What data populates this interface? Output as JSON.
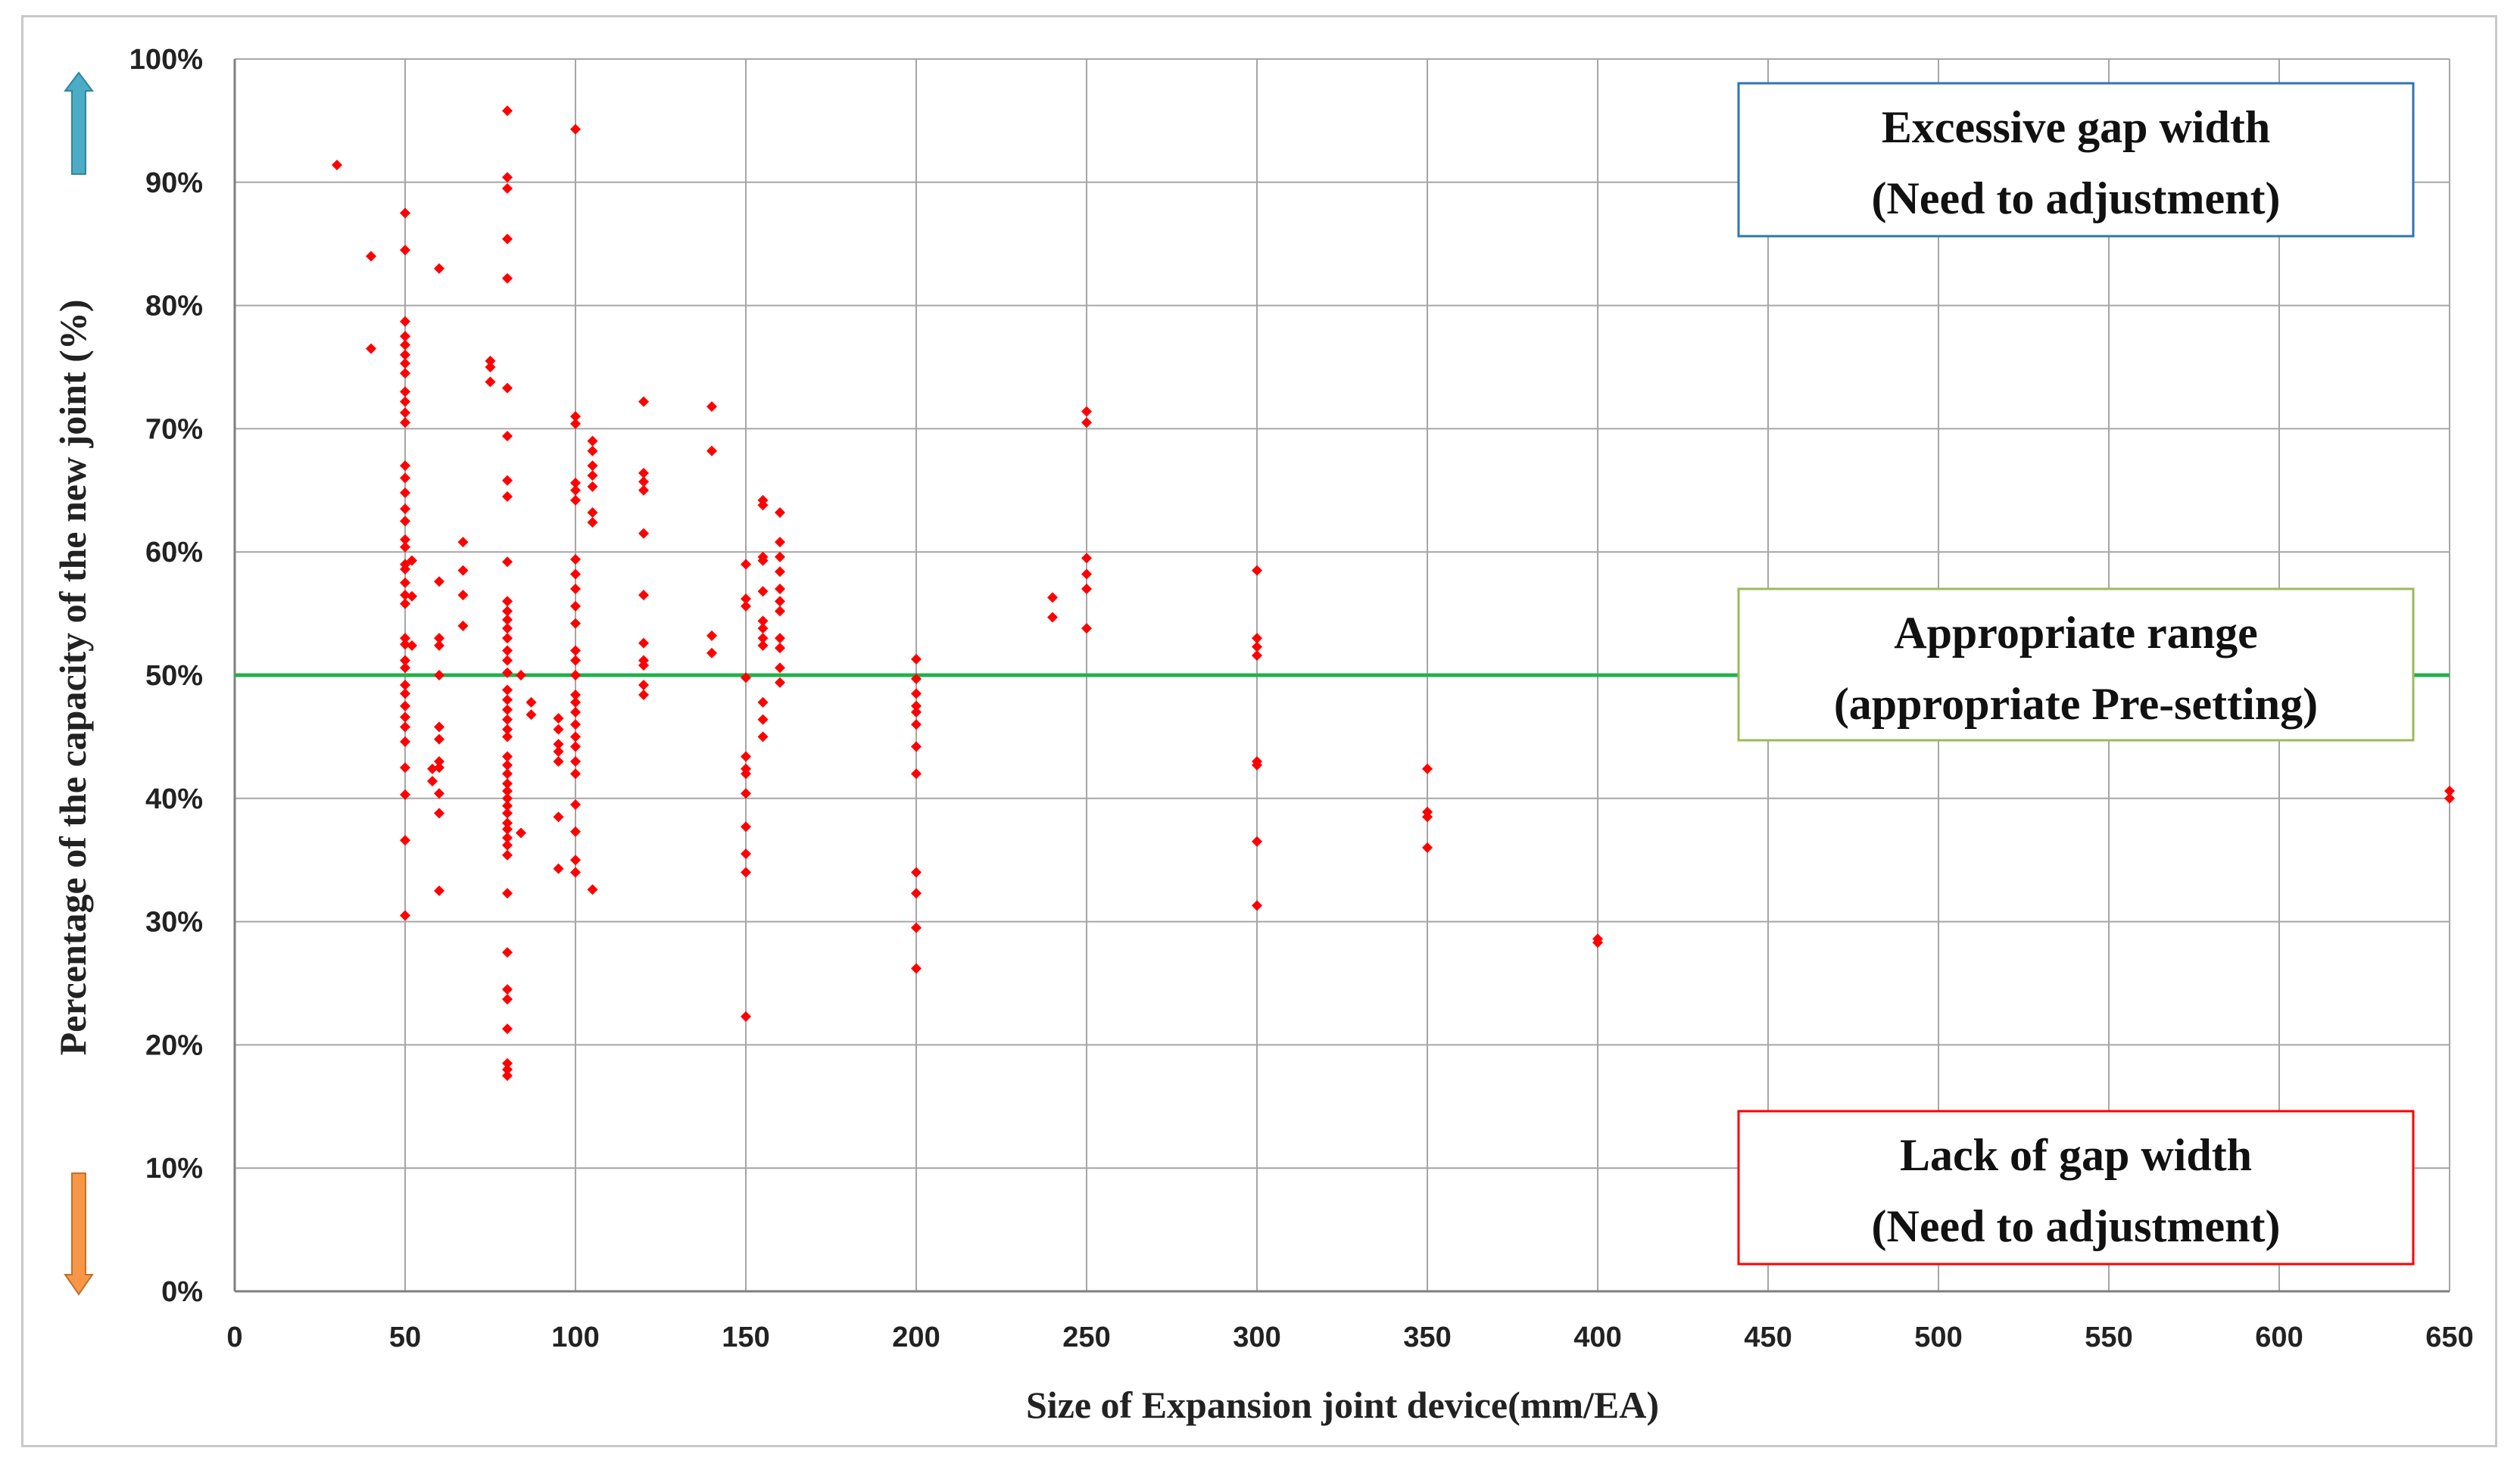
{
  "chart_data": {
    "type": "scatter",
    "title": "",
    "xlabel": "Size of Expansion joint device(mm/EA)",
    "ylabel": "Percentage of the capacity of the new joint (%)",
    "xlim": [
      0,
      650
    ],
    "ylim": [
      0,
      100
    ],
    "x_ticks": [
      0,
      50,
      100,
      150,
      200,
      250,
      300,
      350,
      400,
      450,
      500,
      550,
      600,
      650
    ],
    "y_ticks": [
      0,
      10,
      20,
      30,
      40,
      50,
      60,
      70,
      80,
      90,
      100
    ],
    "y_tick_labels": [
      "0%",
      "10%",
      "20%",
      "30%",
      "40%",
      "50%",
      "60%",
      "70%",
      "80%",
      "90%",
      "100%"
    ],
    "grid": true,
    "point_color": "#ff0000",
    "reference_line": {
      "y": 50,
      "color": "#22b14c"
    },
    "annotations": [
      {
        "lines": [
          "Excessive gap width",
          "(Need to adjustment)"
        ],
        "border_color": "#2e75b6"
      },
      {
        "lines": [
          "Appropriate range",
          "(appropriate Pre-setting)"
        ],
        "border_color": "#9bbb59"
      },
      {
        "lines": [
          "Lack of gap width",
          "(Need to adjustment)"
        ],
        "border_color": "#ff0000"
      }
    ],
    "arrows": [
      {
        "direction": "up",
        "color": "#4bacc6"
      },
      {
        "direction": "down",
        "color": "#f79646"
      }
    ],
    "points": [
      [
        30,
        91.4
      ],
      [
        40,
        84
      ],
      [
        40,
        76.5
      ],
      [
        50,
        87.5
      ],
      [
        50,
        84.5
      ],
      [
        50,
        78.7
      ],
      [
        50,
        77.5
      ],
      [
        50,
        76.8
      ],
      [
        50,
        76
      ],
      [
        50,
        75.3
      ],
      [
        50,
        74.5
      ],
      [
        50,
        73
      ],
      [
        50,
        72.2
      ],
      [
        50,
        71.3
      ],
      [
        50,
        70.5
      ],
      [
        50,
        67
      ],
      [
        50,
        66
      ],
      [
        50,
        64.8
      ],
      [
        50,
        63.5
      ],
      [
        50,
        62.5
      ],
      [
        50,
        61
      ],
      [
        50,
        60.4
      ],
      [
        50,
        59
      ],
      [
        50,
        58.6
      ],
      [
        50,
        57.5
      ],
      [
        50,
        56.5
      ],
      [
        50,
        55.8
      ],
      [
        50,
        53
      ],
      [
        50,
        52.5
      ],
      [
        50,
        51.2
      ],
      [
        50,
        50.6
      ],
      [
        50,
        49.2
      ],
      [
        50,
        48.5
      ],
      [
        50,
        47.5
      ],
      [
        50,
        46.6
      ],
      [
        50,
        45.8
      ],
      [
        50,
        44.6
      ],
      [
        50,
        42.5
      ],
      [
        50,
        40.3
      ],
      [
        50,
        36.6
      ],
      [
        50,
        30.5
      ],
      [
        52,
        59.3
      ],
      [
        52,
        56.4
      ],
      [
        52,
        52.4
      ],
      [
        58,
        42.4
      ],
      [
        58,
        41.4
      ],
      [
        60,
        83
      ],
      [
        60,
        57.6
      ],
      [
        60,
        53
      ],
      [
        60,
        52.4
      ],
      [
        60,
        50
      ],
      [
        60,
        45.8
      ],
      [
        60,
        44.8
      ],
      [
        60,
        43
      ],
      [
        60,
        42.5
      ],
      [
        60,
        40.4
      ],
      [
        60,
        38.8
      ],
      [
        60,
        32.5
      ],
      [
        67,
        60.8
      ],
      [
        67,
        58.5
      ],
      [
        67,
        56.5
      ],
      [
        67,
        54
      ],
      [
        75,
        75.5
      ],
      [
        75,
        75
      ],
      [
        75,
        73.8
      ],
      [
        80,
        95.8
      ],
      [
        80,
        90.4
      ],
      [
        80,
        89.5
      ],
      [
        80,
        85.4
      ],
      [
        80,
        82.2
      ],
      [
        80,
        73.3
      ],
      [
        80,
        69.4
      ],
      [
        80,
        65.8
      ],
      [
        80,
        64.5
      ],
      [
        80,
        59.2
      ],
      [
        80,
        56
      ],
      [
        80,
        55.2
      ],
      [
        80,
        54.5
      ],
      [
        80,
        53.8
      ],
      [
        80,
        53
      ],
      [
        80,
        52
      ],
      [
        80,
        51.2
      ],
      [
        80,
        50.2
      ],
      [
        80,
        48.8
      ],
      [
        80,
        48
      ],
      [
        80,
        47.2
      ],
      [
        80,
        46.4
      ],
      [
        80,
        45.6
      ],
      [
        80,
        45
      ],
      [
        80,
        43.4
      ],
      [
        80,
        42.7
      ],
      [
        80,
        42
      ],
      [
        80,
        41.2
      ],
      [
        80,
        40.6
      ],
      [
        80,
        40
      ],
      [
        80,
        39.4
      ],
      [
        80,
        38.8
      ],
      [
        80,
        38
      ],
      [
        80,
        37.5
      ],
      [
        80,
        36.8
      ],
      [
        80,
        36.2
      ],
      [
        80,
        35.4
      ],
      [
        80,
        32.3
      ],
      [
        80,
        27.5
      ],
      [
        80,
        24.5
      ],
      [
        80,
        23.7
      ],
      [
        80,
        21.3
      ],
      [
        80,
        18.5
      ],
      [
        80,
        18
      ],
      [
        80,
        17.5
      ],
      [
        84,
        50
      ],
      [
        84,
        37.2
      ],
      [
        87,
        47.8
      ],
      [
        87,
        46.8
      ],
      [
        95,
        46.5
      ],
      [
        95,
        45.6
      ],
      [
        95,
        44.4
      ],
      [
        95,
        43.8
      ],
      [
        95,
        43
      ],
      [
        95,
        38.5
      ],
      [
        95,
        34.3
      ],
      [
        100,
        94.3
      ],
      [
        100,
        71
      ],
      [
        100,
        70.4
      ],
      [
        100,
        65.6
      ],
      [
        100,
        65
      ],
      [
        100,
        64.2
      ],
      [
        100,
        59.4
      ],
      [
        100,
        58.2
      ],
      [
        100,
        57
      ],
      [
        100,
        55.6
      ],
      [
        100,
        54.2
      ],
      [
        100,
        52
      ],
      [
        100,
        51.2
      ],
      [
        100,
        50
      ],
      [
        100,
        48.4
      ],
      [
        100,
        47.8
      ],
      [
        100,
        47
      ],
      [
        100,
        46
      ],
      [
        100,
        45
      ],
      [
        100,
        44.2
      ],
      [
        100,
        43
      ],
      [
        100,
        42
      ],
      [
        100,
        39.5
      ],
      [
        100,
        37.3
      ],
      [
        100,
        35
      ],
      [
        100,
        34
      ],
      [
        105,
        69
      ],
      [
        105,
        68.2
      ],
      [
        105,
        67
      ],
      [
        105,
        66.2
      ],
      [
        105,
        65.3
      ],
      [
        105,
        63.2
      ],
      [
        105,
        62.4
      ],
      [
        105,
        32.6
      ],
      [
        120,
        72.2
      ],
      [
        120,
        66.4
      ],
      [
        120,
        65.7
      ],
      [
        120,
        65
      ],
      [
        120,
        61.5
      ],
      [
        120,
        56.5
      ],
      [
        120,
        52.6
      ],
      [
        120,
        51.2
      ],
      [
        120,
        50.8
      ],
      [
        120,
        49.2
      ],
      [
        120,
        48.4
      ],
      [
        140,
        71.8
      ],
      [
        140,
        68.2
      ],
      [
        140,
        53.2
      ],
      [
        140,
        51.8
      ],
      [
        150,
        59
      ],
      [
        150,
        56.2
      ],
      [
        150,
        55.6
      ],
      [
        150,
        49.8
      ],
      [
        150,
        43.4
      ],
      [
        150,
        42.4
      ],
      [
        150,
        42
      ],
      [
        150,
        40.4
      ],
      [
        150,
        37.7
      ],
      [
        150,
        35.5
      ],
      [
        150,
        34
      ],
      [
        150,
        22.3
      ],
      [
        155,
        64.2
      ],
      [
        155,
        63.8
      ],
      [
        155,
        59.6
      ],
      [
        155,
        59.3
      ],
      [
        155,
        56.8
      ],
      [
        155,
        54.4
      ],
      [
        155,
        53.8
      ],
      [
        155,
        53
      ],
      [
        155,
        52.4
      ],
      [
        155,
        47.8
      ],
      [
        155,
        46.4
      ],
      [
        155,
        45
      ],
      [
        160,
        63.2
      ],
      [
        160,
        60.8
      ],
      [
        160,
        59.6
      ],
      [
        160,
        58.4
      ],
      [
        160,
        57
      ],
      [
        160,
        56
      ],
      [
        160,
        55.2
      ],
      [
        160,
        53
      ],
      [
        160,
        52.2
      ],
      [
        160,
        50.6
      ],
      [
        160,
        49.4
      ],
      [
        200,
        51.3
      ],
      [
        200,
        49.7
      ],
      [
        200,
        48.5
      ],
      [
        200,
        47.5
      ],
      [
        200,
        47
      ],
      [
        200,
        46
      ],
      [
        200,
        44.2
      ],
      [
        200,
        42
      ],
      [
        200,
        34
      ],
      [
        200,
        32.3
      ],
      [
        200,
        29.5
      ],
      [
        200,
        26.2
      ],
      [
        240,
        56.3
      ],
      [
        240,
        54.7
      ],
      [
        250,
        71.4
      ],
      [
        250,
        70.5
      ],
      [
        250,
        59.5
      ],
      [
        250,
        58.2
      ],
      [
        250,
        57
      ],
      [
        250,
        53.8
      ],
      [
        300,
        58.5
      ],
      [
        300,
        53
      ],
      [
        300,
        52.3
      ],
      [
        300,
        51.6
      ],
      [
        300,
        43
      ],
      [
        300,
        42.7
      ],
      [
        300,
        36.5
      ],
      [
        300,
        31.3
      ],
      [
        350,
        42.4
      ],
      [
        350,
        38.9
      ],
      [
        350,
        38.5
      ],
      [
        350,
        36
      ],
      [
        400,
        28.6
      ],
      [
        400,
        28.3
      ],
      [
        650,
        40.6
      ],
      [
        650,
        40
      ]
    ]
  }
}
